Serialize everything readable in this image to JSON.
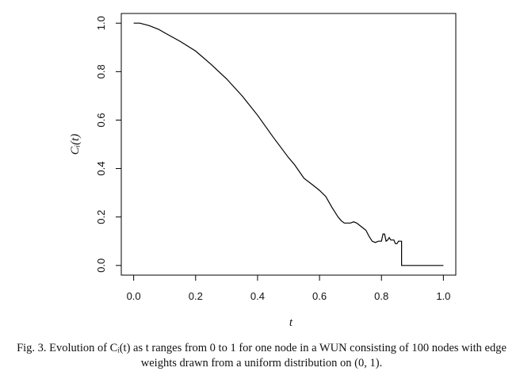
{
  "caption": {
    "prefix": "Fig. 3.",
    "text": "Evolution of Cᵢ(t) as t ranges from 0 to 1 for one node in a WUN consisting of 100 nodes with edge weights drawn from a uniform distribution on (0, 1)."
  },
  "chart_data": {
    "type": "line",
    "xlabel": "t",
    "ylabel": "Cᵢ(t)",
    "xlim": [
      -0.04,
      1.04
    ],
    "ylim": [
      -0.04,
      1.04
    ],
    "xticks": [
      "0.0",
      "0.2",
      "0.4",
      "0.6",
      "0.8",
      "1.0"
    ],
    "yticks": [
      "0.0",
      "0.2",
      "0.4",
      "0.6",
      "0.8",
      "1.0"
    ],
    "grid": false,
    "legend": "none",
    "line_color": "#000000",
    "series": [
      {
        "x": [
          0.0,
          0.02,
          0.05,
          0.08,
          0.1,
          0.15,
          0.2,
          0.25,
          0.3,
          0.35,
          0.4,
          0.45,
          0.5,
          0.52,
          0.55,
          0.58,
          0.6,
          0.62,
          0.64,
          0.66,
          0.67,
          0.68,
          0.7,
          0.71,
          0.72,
          0.73,
          0.74,
          0.75,
          0.76,
          0.77,
          0.78,
          0.79,
          0.8,
          0.805,
          0.81,
          0.815,
          0.82,
          0.825,
          0.83,
          0.84,
          0.845,
          0.85,
          0.855,
          0.86,
          0.865,
          0.865,
          0.9,
          0.95,
          1.0
        ],
        "y": [
          1.0,
          1.0,
          0.99,
          0.975,
          0.96,
          0.925,
          0.885,
          0.83,
          0.77,
          0.7,
          0.62,
          0.53,
          0.445,
          0.415,
          0.36,
          0.33,
          0.31,
          0.285,
          0.24,
          0.2,
          0.185,
          0.175,
          0.175,
          0.18,
          0.175,
          0.165,
          0.155,
          0.145,
          0.12,
          0.1,
          0.095,
          0.1,
          0.1,
          0.13,
          0.13,
          0.1,
          0.105,
          0.115,
          0.105,
          0.105,
          0.09,
          0.09,
          0.1,
          0.1,
          0.1,
          0.0,
          0.0,
          0.0,
          0.0
        ]
      }
    ]
  }
}
